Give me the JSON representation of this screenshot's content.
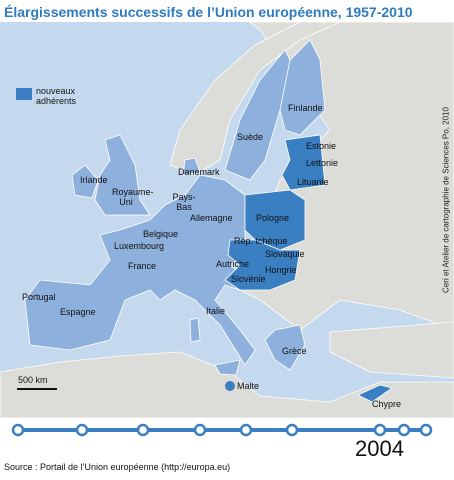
{
  "title": "Élargissements successifs de l’Union européenne, 1957-2010",
  "legend": {
    "label": "nouveaux adhérents"
  },
  "countries": [
    {
      "label": "Finlande"
    },
    {
      "label": "Suède"
    },
    {
      "label": "Estonie"
    },
    {
      "label": "Lettonie"
    },
    {
      "label": "Lituanie"
    },
    {
      "label": "Danemark"
    },
    {
      "label": "Irlande"
    },
    {
      "label": "Royaume-Uni"
    },
    {
      "label": "Pays-Bas"
    },
    {
      "label": "Allemagne"
    },
    {
      "label": "Pologne"
    },
    {
      "label": "Belgique"
    },
    {
      "label": "Luxembourg"
    },
    {
      "label": "Rép. tchèque"
    },
    {
      "label": "Slovaquie"
    },
    {
      "label": "France"
    },
    {
      "label": "Autriche"
    },
    {
      "label": "Hongrie"
    },
    {
      "label": "Slovénie"
    },
    {
      "label": "Portugal"
    },
    {
      "label": "Espagne"
    },
    {
      "label": "Italie"
    },
    {
      "label": "Grèce"
    },
    {
      "label": "Malte"
    },
    {
      "label": "Chypre"
    }
  ],
  "scale": "500 km",
  "credit": "Ceri et Atelier de cartographie de Sciences Po, 2010",
  "timeline": {
    "year": "2004"
  },
  "source": "Source : Portail de l’Union européenne (http://europa.eu)"
}
